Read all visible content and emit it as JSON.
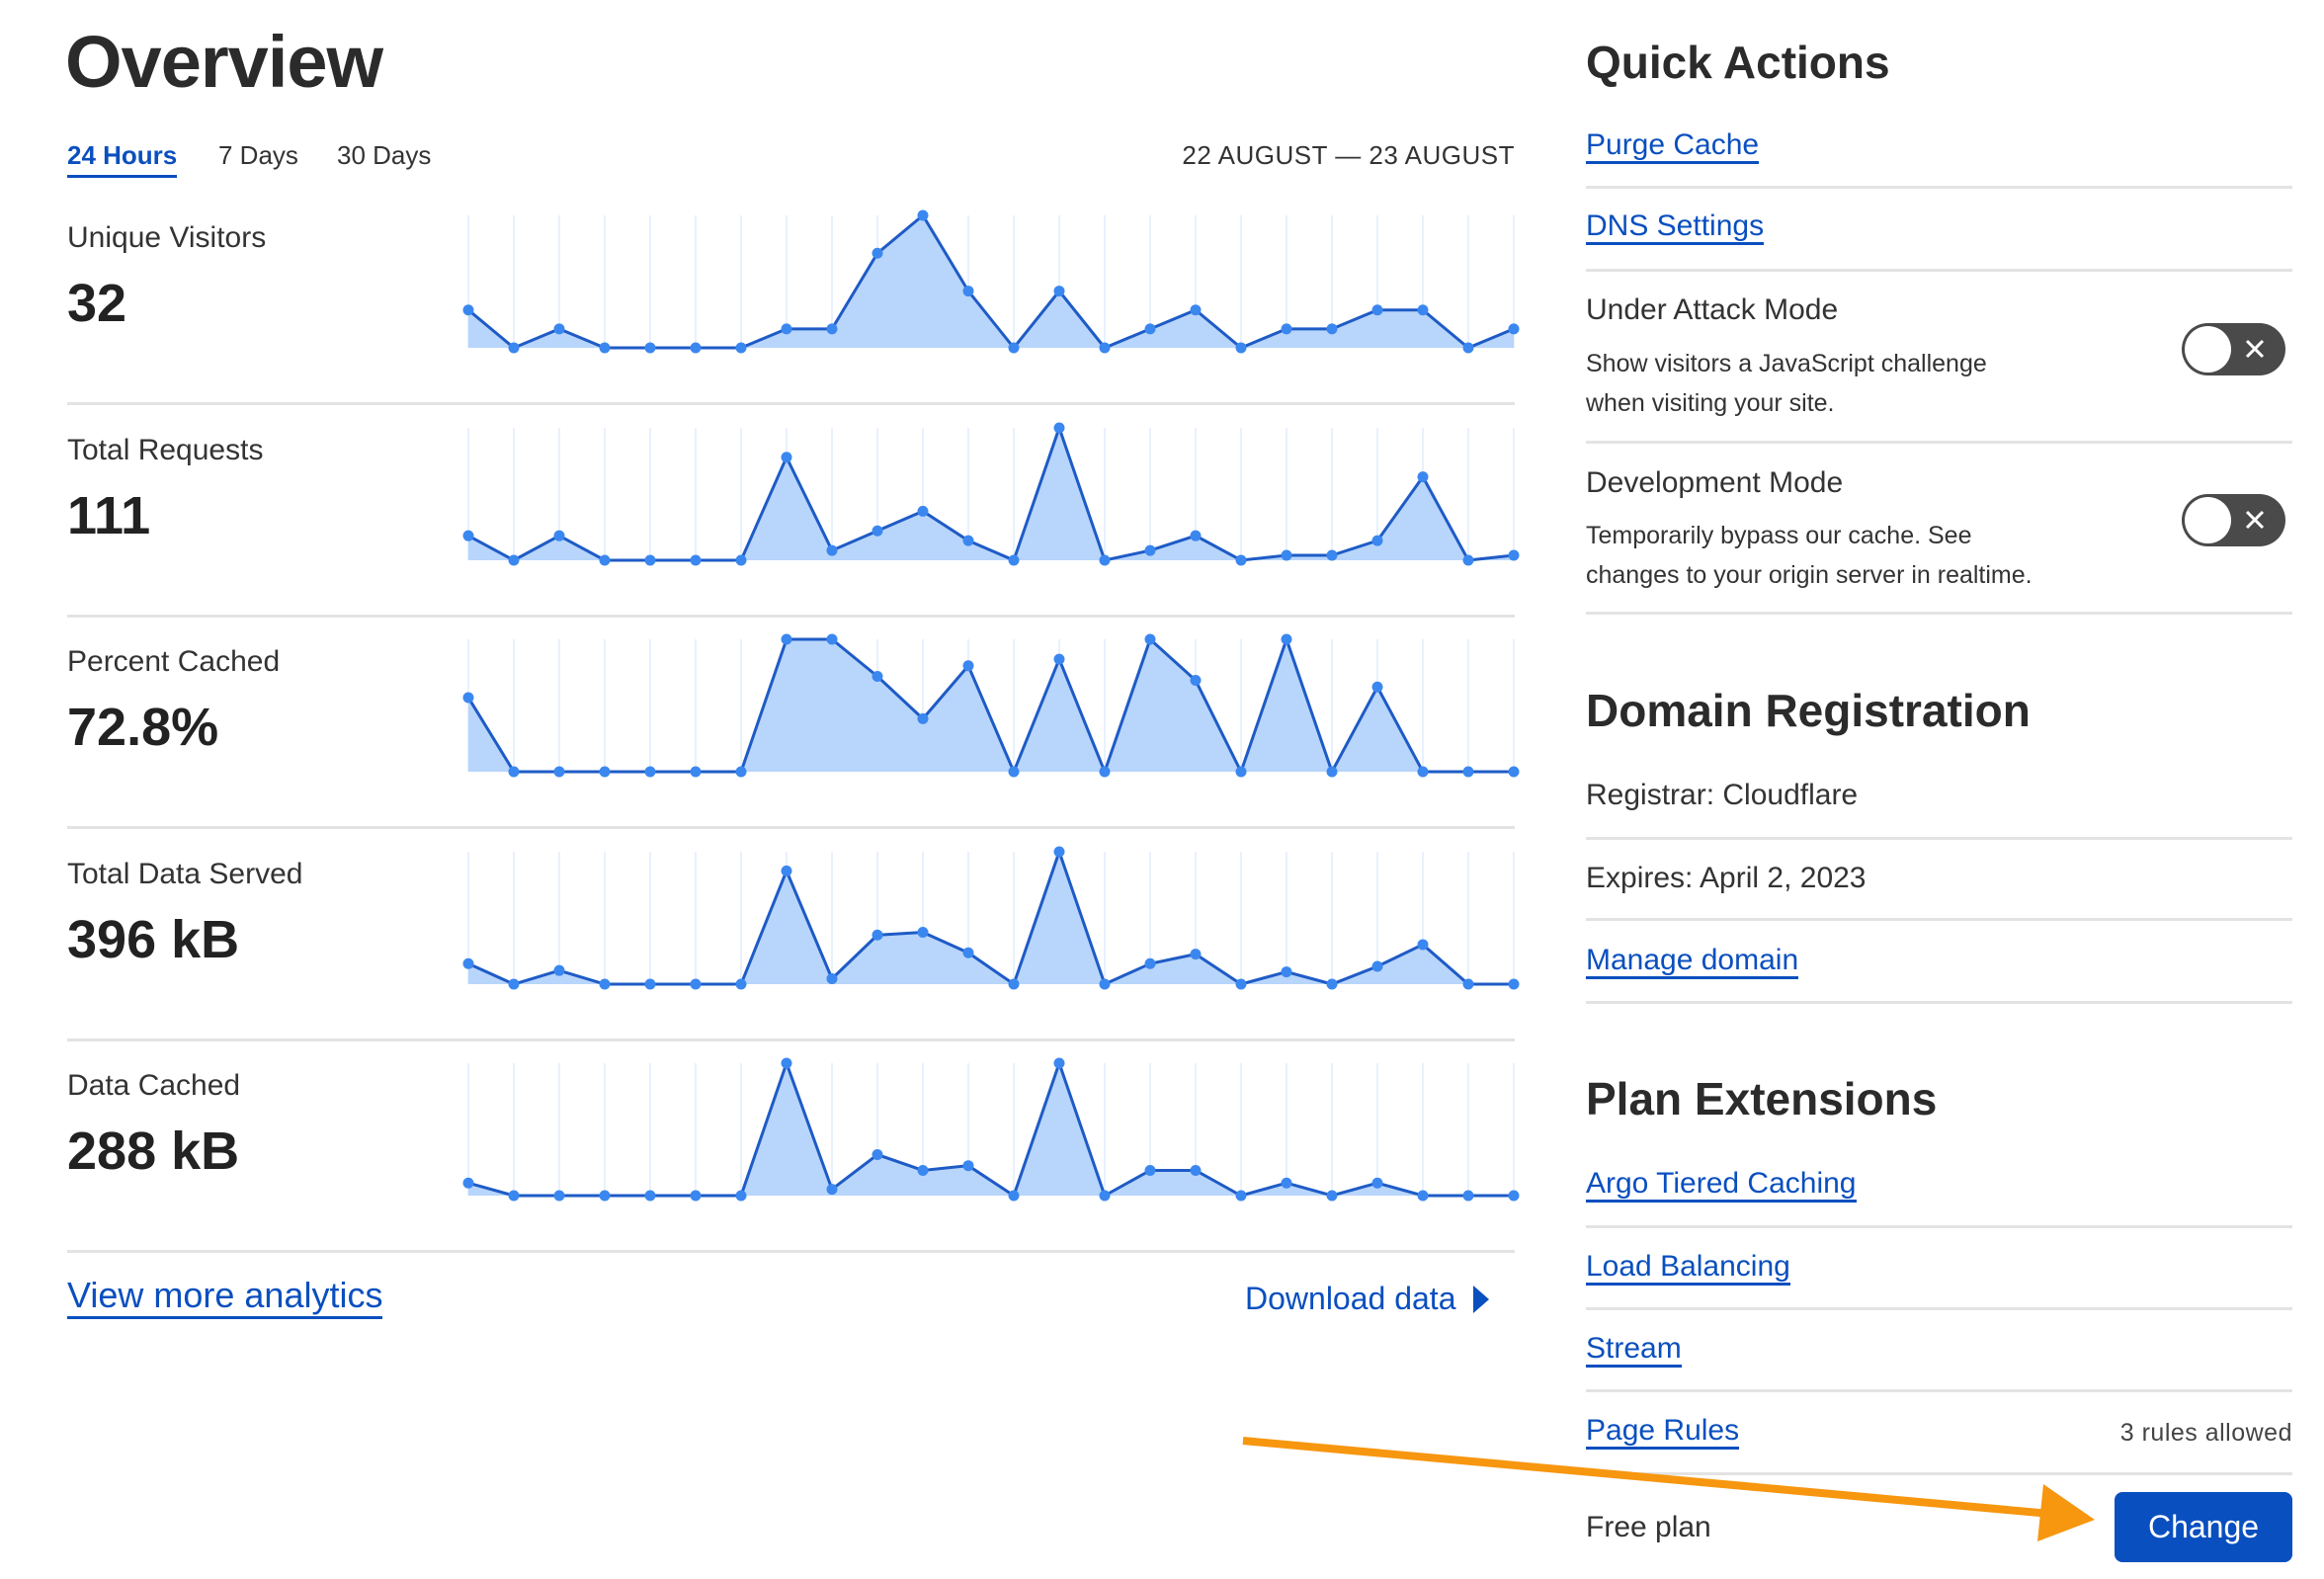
{
  "overview": {
    "title": "Overview",
    "tabs": [
      {
        "label": "24 Hours",
        "active": true
      },
      {
        "label": "7 Days",
        "active": false
      },
      {
        "label": "30 Days",
        "active": false
      }
    ],
    "date_range": "22 AUGUST — 23 AUGUST",
    "view_more_label": "View more analytics",
    "download_label": "Download data",
    "download_icon": "caret-right-icon"
  },
  "chart_data": [
    {
      "type": "area",
      "label": "Unique Visitors",
      "total": "32",
      "values": [
        2,
        0,
        1,
        0,
        0,
        0,
        0,
        1,
        1,
        5,
        7,
        3,
        0,
        3,
        0,
        1,
        2,
        0,
        1,
        1,
        2,
        2,
        0,
        1
      ]
    },
    {
      "type": "area",
      "label": "Total Requests",
      "total": "111",
      "values": [
        5,
        0,
        5,
        0,
        0,
        0,
        0,
        21,
        2,
        6,
        10,
        4,
        0,
        27,
        0,
        2,
        5,
        0,
        1,
        1,
        4,
        17,
        0,
        1
      ]
    },
    {
      "type": "area",
      "label": "Percent Cached",
      "total": "72.8%",
      "values": [
        56,
        0,
        0,
        0,
        0,
        0,
        0,
        100,
        100,
        72,
        40,
        80,
        0,
        85,
        0,
        100,
        69,
        0,
        100,
        0,
        64,
        0,
        0,
        0
      ]
    },
    {
      "type": "area",
      "label": "Total Data Served",
      "total": "396 kB",
      "values": [
        15,
        0,
        10,
        0,
        0,
        0,
        0,
        83,
        4,
        36,
        38,
        23,
        0,
        97,
        0,
        15,
        22,
        0,
        9,
        0,
        13,
        29,
        0,
        0
      ]
    },
    {
      "type": "area",
      "label": "Data Cached",
      "total": "288 kB",
      "values": [
        8,
        0,
        0,
        0,
        0,
        0,
        0,
        84,
        4,
        26,
        16,
        19,
        0,
        84,
        0,
        16,
        16,
        0,
        8,
        0,
        8,
        0,
        0,
        0
      ]
    }
  ],
  "colors": {
    "accent": "#0a4fbf",
    "line": "#1e5bc6",
    "point": "#3b87f0",
    "fill": "#b8d5fb",
    "grid": "#e8f1fd",
    "toggle_off": "#4a4a4a",
    "annotation_arrow": "#f7960f"
  },
  "quick_actions": {
    "title": "Quick Actions",
    "links": [
      "Purge Cache",
      "DNS Settings"
    ],
    "toggles": [
      {
        "title": "Under Attack Mode",
        "desc1": "Show visitors a JavaScript challenge",
        "desc2": "when visiting your site.",
        "on": false
      },
      {
        "title": "Development Mode",
        "desc1": "Temporarily bypass our cache. See",
        "desc2": "changes to your origin server in realtime.",
        "on": false
      }
    ]
  },
  "domain": {
    "title": "Domain Registration",
    "registrar": "Registrar: Cloudflare",
    "expires": "Expires: April 2, 2023",
    "manage_label": "Manage domain"
  },
  "plan": {
    "title": "Plan Extensions",
    "links": [
      "Argo Tiered Caching",
      "Load Balancing",
      "Stream",
      "Page Rules"
    ],
    "page_rules_note": "3 rules allowed",
    "plan_name": "Free plan",
    "change_label": "Change"
  }
}
